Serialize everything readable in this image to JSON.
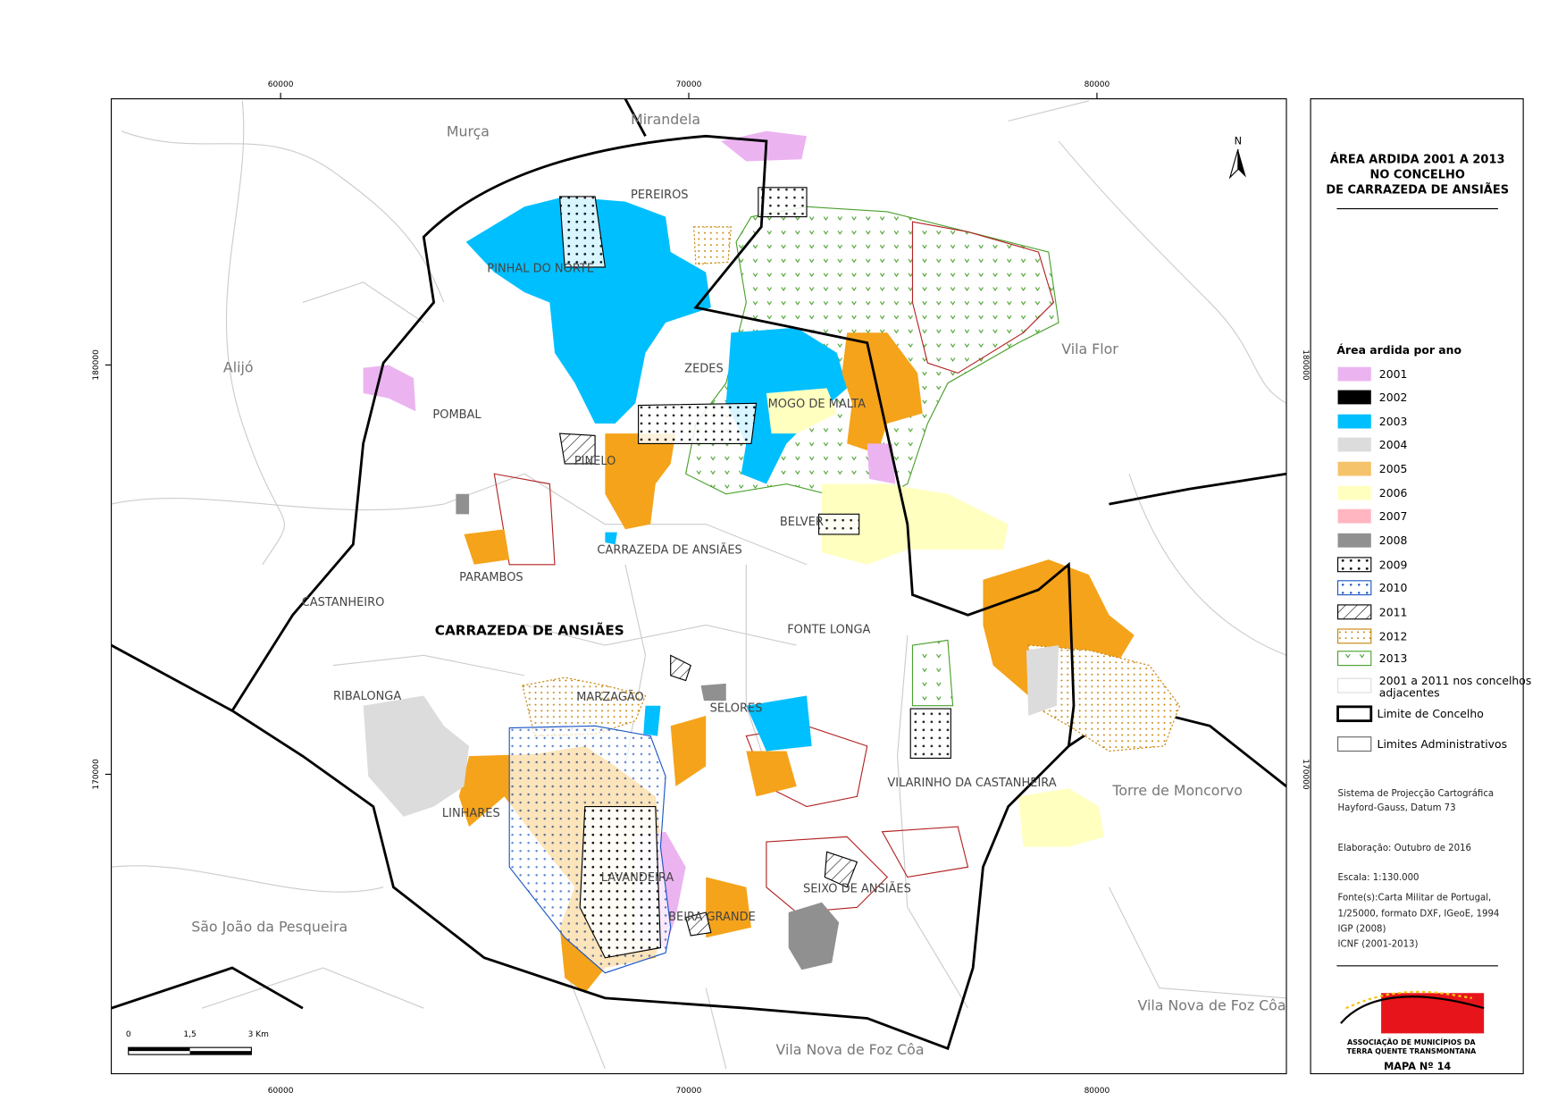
{
  "title": [
    "ÁREA ARDIDA 2001 A 2013",
    "NO CONCELHO",
    "DE CARRAZEDA DE ANSIÃES"
  ],
  "north": "N",
  "grid": {
    "x_labels": [
      60000,
      70000,
      80000
    ],
    "y_labels": [
      180000,
      170000
    ]
  },
  "places": {
    "adjacent": [
      "Murça",
      "Mirandela",
      "Alijó",
      "Vila Flor",
      "Torre de Moncorvo",
      "São João da Pesqueira",
      "Vila Nova de Foz Côa",
      "Vila Nova de Foz Côa"
    ],
    "parishes": [
      "PEREIROS",
      "PINHAL DO NORTE",
      "POMBAL",
      "ZEDES",
      "MOGO DE MALTA",
      "PINELO",
      "BELVER",
      "CARRAZEDA DE ANSIÃES",
      "PARAMBOS",
      "CASTANHEIRO",
      "FONTE LONGA",
      "RIBALONGA",
      "MARZAGÃO",
      "SELORES",
      "VILARINHO DA CASTANHEIRA",
      "LINHARES",
      "LAVANDEIRA",
      "SEIXO DE ANSIÃES",
      "BEIRA GRANDE"
    ],
    "municipality": "CARRAZEDA DE ANSIÃES"
  },
  "legend": {
    "heading": "Área ardida por ano",
    "items": [
      "2001",
      "2002",
      "2003",
      "2004",
      "2005",
      "2006",
      "2007",
      "2008",
      "2009",
      "2010",
      "2011",
      "2012",
      "2013"
    ],
    "adjacent": [
      "2001 a 2011 nos concelhos",
      "adjacentes"
    ],
    "limit": "Limite de Concelho",
    "admin": "Limites Administrativos"
  },
  "notes": [
    "Sistema de Projecção Cartográfica",
    "Hayford-Gauss, Datum 73",
    "Elaboração: Outubro de 2016",
    "Escala: 1:130.000",
    "Fonte(s):Carta Militar de Portugal,",
    "1/25000, formato DXF, IGeoE, 1994",
    "IGP (2008)",
    "ICNF (2001-2013)"
  ],
  "scale_bar": [
    "0",
    "1,5",
    "3 Km"
  ],
  "logo": [
    "ASSOCIAÇÃO DE MUNICÍPIOS DA",
    "TERRA QUENTE TRANSMONTANA"
  ],
  "map_number": "MAPA Nº 14"
}
